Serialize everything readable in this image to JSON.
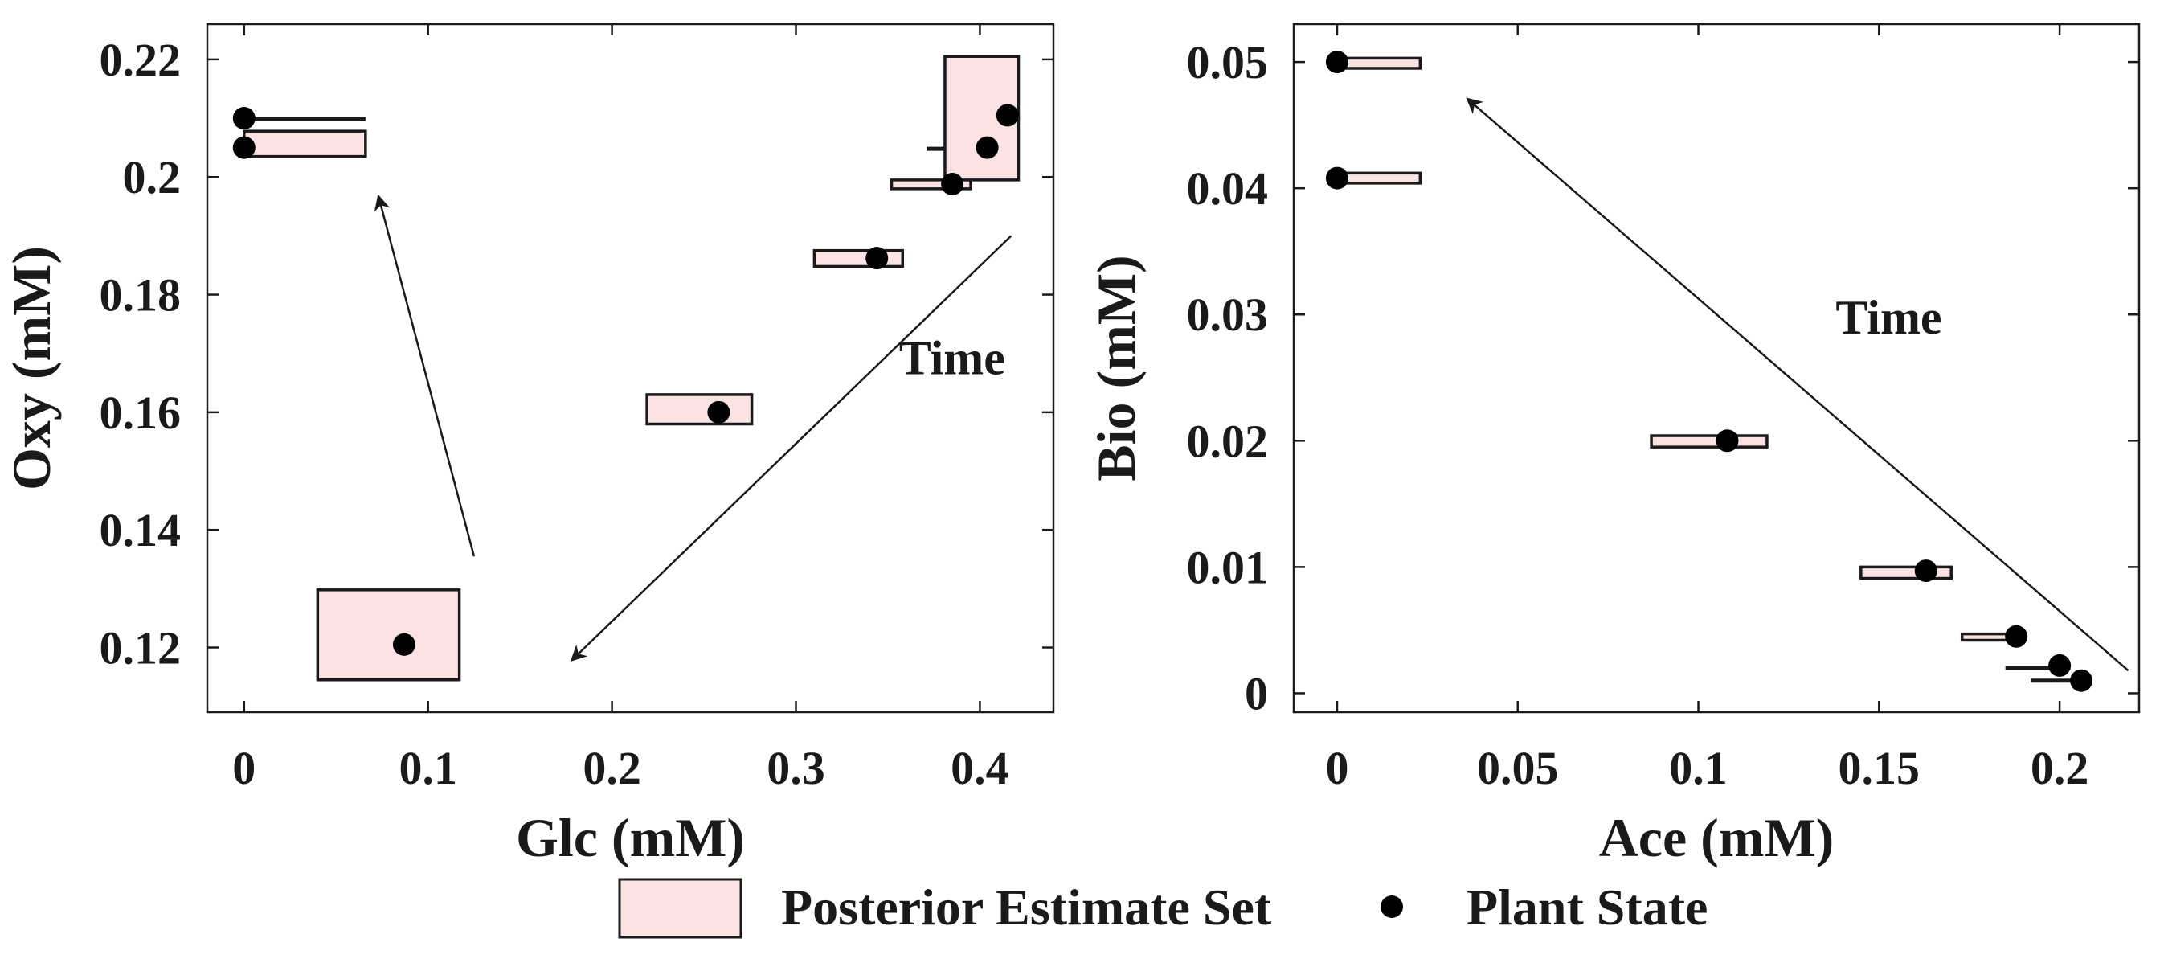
{
  "colors": {
    "box_fill": "#fbe3e4",
    "box_stroke": "#1a1a1a",
    "axis": "#1a1a1a",
    "point": "#000000",
    "background": "#ffffff"
  },
  "legend": {
    "box_label": "Posterior Estimate Set",
    "point_label": "Plant State"
  },
  "chart_data": [
    {
      "type": "scatter",
      "title": "",
      "xlabel": "Glc (mM)",
      "ylabel": "Oxy (mM)",
      "xlim": [
        -0.02,
        0.44
      ],
      "ylim": [
        0.109,
        0.226
      ],
      "xticks": [
        0,
        0.1,
        0.2,
        0.3,
        0.4
      ],
      "xtick_labels": [
        "0",
        "0.1",
        "0.2",
        "0.3",
        "0.4"
      ],
      "yticks": [
        0.12,
        0.14,
        0.16,
        0.18,
        0.2,
        0.22
      ],
      "ytick_labels": [
        "0.12",
        "0.14",
        "0.16",
        "0.18",
        "0.2",
        "0.22"
      ],
      "series": [
        {
          "name": "Posterior Estimate Set",
          "boxes": [
            {
              "x0": 0.0,
              "x1": 0.066,
              "y0": 0.2035,
              "y1": 0.2078
            },
            {
              "x0": 0.0,
              "x1": 0.066,
              "y0": 0.2098,
              "y1": 0.2098
            },
            {
              "x0": 0.04,
              "x1": 0.117,
              "y0": 0.1145,
              "y1": 0.1298
            },
            {
              "x0": 0.219,
              "x1": 0.276,
              "y0": 0.158,
              "y1": 0.163
            },
            {
              "x0": 0.31,
              "x1": 0.358,
              "y0": 0.1848,
              "y1": 0.1875
            },
            {
              "x0": 0.352,
              "x1": 0.395,
              "y0": 0.198,
              "y1": 0.1995
            },
            {
              "x0": 0.371,
              "x1": 0.393,
              "y0": 0.2048,
              "y1": 0.2048
            },
            {
              "x0": 0.381,
              "x1": 0.421,
              "y0": 0.1995,
              "y1": 0.2205
            }
          ]
        },
        {
          "name": "Plant State",
          "points": [
            {
              "x": 0.0,
              "y": 0.21
            },
            {
              "x": 0.0,
              "y": 0.205
            },
            {
              "x": 0.087,
              "y": 0.1205
            },
            {
              "x": 0.258,
              "y": 0.16
            },
            {
              "x": 0.344,
              "y": 0.1862
            },
            {
              "x": 0.385,
              "y": 0.1988
            },
            {
              "x": 0.404,
              "y": 0.205
            },
            {
              "x": 0.415,
              "y": 0.2105
            }
          ]
        }
      ],
      "annotations": [
        {
          "type": "arrow",
          "from": [
            0.125,
            0.1355
          ],
          "to": [
            0.073,
            0.1968
          ]
        },
        {
          "type": "arrow",
          "from": [
            0.417,
            0.19
          ],
          "to": [
            0.178,
            0.1178
          ]
        },
        {
          "type": "text",
          "text": "Time",
          "x": 0.356,
          "y": 0.1665
        }
      ]
    },
    {
      "type": "scatter",
      "title": "",
      "xlabel": "Ace (mM)",
      "ylabel": "Bio (mM)",
      "xlim": [
        -0.012,
        0.222
      ],
      "ylim": [
        -0.0015,
        0.053
      ],
      "xticks": [
        0,
        0.05,
        0.1,
        0.15,
        0.2
      ],
      "xtick_labels": [
        "0",
        "0.05",
        "0.1",
        "0.15",
        "0.2"
      ],
      "yticks": [
        0,
        0.01,
        0.02,
        0.03,
        0.04,
        0.05
      ],
      "ytick_labels": [
        "0",
        "0.01",
        "0.02",
        "0.03",
        "0.04",
        "0.05"
      ],
      "series": [
        {
          "name": "Posterior Estimate Set",
          "boxes": [
            {
              "x0": 0.0,
              "x1": 0.023,
              "y0": 0.0495,
              "y1": 0.0503
            },
            {
              "x0": 0.0,
              "x1": 0.023,
              "y0": 0.0404,
              "y1": 0.0412
            },
            {
              "x0": 0.087,
              "x1": 0.119,
              "y0": 0.0195,
              "y1": 0.0204
            },
            {
              "x0": 0.145,
              "x1": 0.17,
              "y0": 0.0091,
              "y1": 0.01
            },
            {
              "x0": 0.173,
              "x1": 0.19,
              "y0": 0.0042,
              "y1": 0.0047
            },
            {
              "x0": 0.185,
              "x1": 0.203,
              "y0": 0.002,
              "y1": 0.002
            },
            {
              "x0": 0.192,
              "x1": 0.208,
              "y0": 0.001,
              "y1": 0.001
            }
          ]
        },
        {
          "name": "Plant State",
          "points": [
            {
              "x": 0.0,
              "y": 0.05
            },
            {
              "x": 0.0,
              "y": 0.0408
            },
            {
              "x": 0.108,
              "y": 0.02
            },
            {
              "x": 0.163,
              "y": 0.0097
            },
            {
              "x": 0.188,
              "y": 0.0045
            },
            {
              "x": 0.2,
              "y": 0.0022
            },
            {
              "x": 0.206,
              "y": 0.001
            }
          ]
        }
      ],
      "annotations": [
        {
          "type": "arrow",
          "from": [
            0.219,
            0.0018
          ],
          "to": [
            0.036,
            0.0471
          ]
        },
        {
          "type": "text",
          "text": "Time",
          "x": 0.138,
          "y": 0.0285
        }
      ]
    }
  ]
}
